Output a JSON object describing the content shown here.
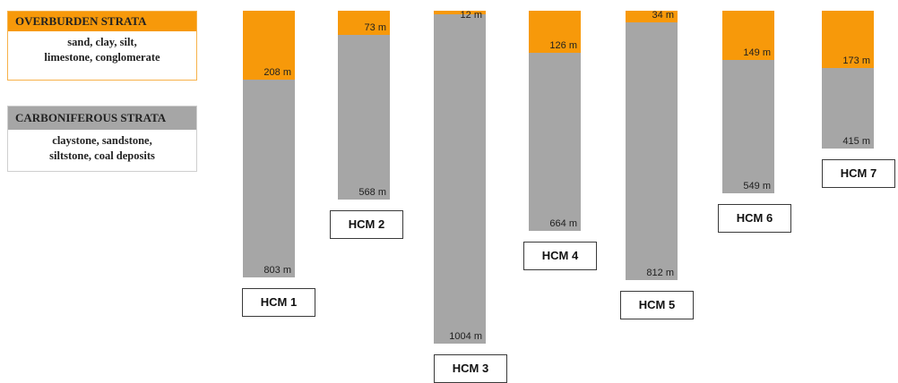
{
  "legend": {
    "overburden": {
      "title": "OVERBURDEN STRATA",
      "line1": "sand, clay, silt,",
      "line2": "limestone, conglomerate",
      "color": "#f7990a"
    },
    "carboniferous": {
      "title": "CARBONIFEROUS STRATA",
      "line1": "claystone, sandstone,",
      "line2": "siltstone, coal deposits",
      "color": "#a6a6a6"
    }
  },
  "columns": [
    {
      "name": "HCM 1",
      "overburden_depth": 208,
      "total_depth": 803,
      "overburden_label": "208 m",
      "total_label": "803 m"
    },
    {
      "name": "HCM 2",
      "overburden_depth": 73,
      "total_depth": 568,
      "overburden_label": "73 m",
      "total_label": "568 m"
    },
    {
      "name": "HCM 3",
      "overburden_depth": 12,
      "total_depth": 1004,
      "overburden_label": "12 m",
      "total_label": "1004 m"
    },
    {
      "name": "HCM 4",
      "overburden_depth": 126,
      "total_depth": 664,
      "overburden_label": "126 m",
      "total_label": "664 m"
    },
    {
      "name": "HCM 5",
      "overburden_depth": 34,
      "total_depth": 812,
      "overburden_label": "34 m",
      "total_label": "812 m"
    },
    {
      "name": "HCM 6",
      "overburden_depth": 149,
      "total_depth": 549,
      "overburden_label": "149 m",
      "total_label": "549 m"
    },
    {
      "name": "HCM 7",
      "overburden_depth": 173,
      "total_depth": 415,
      "overburden_label": "173 m",
      "total_label": "415 m"
    }
  ]
}
